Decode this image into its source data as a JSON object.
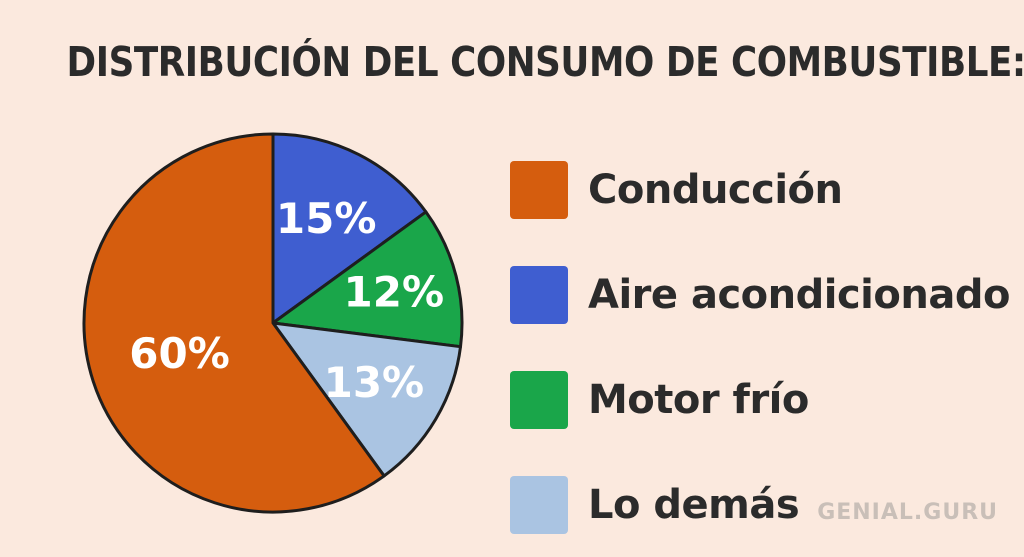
{
  "chart_data": {
    "type": "pie",
    "title": "DISTRIBUCIÓN DEL CONSUMO DE COMBUSTIBLE:",
    "categories": [
      "Aire acondicionado",
      "Motor frío",
      "Lo demás",
      "Conducción"
    ],
    "values": [
      15,
      12,
      13,
      60
    ],
    "labels": [
      "15%",
      "12%",
      "13%",
      "60%"
    ],
    "colors": [
      "#3f5ed0",
      "#1aa64a",
      "#aac4e2",
      "#d55d0e"
    ],
    "legend": {
      "placement": "right",
      "entries": [
        {
          "label": "Conducción",
          "color": "#d55d0e"
        },
        {
          "label": "Aire acondicionado",
          "color": "#3f5ed0"
        },
        {
          "label": "Motor frío",
          "color": "#1aa64a"
        },
        {
          "label": "Lo demás",
          "color": "#aac4e2"
        }
      ]
    }
  },
  "brand": "GENIAL.GURU"
}
